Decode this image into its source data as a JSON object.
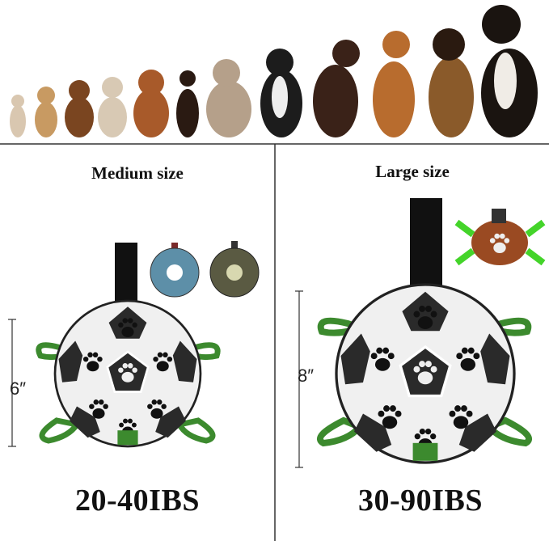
{
  "medium": {
    "title": "Medium size",
    "dimension": "6″",
    "weight": "20-40IBS"
  },
  "large": {
    "title": "Large size",
    "dimension": "8″",
    "weight": "30-90IBS"
  },
  "colors": {
    "strap": "#111111",
    "tab_green": "#3c8a2e",
    "ball_black": "#2a2a2a",
    "ball_white": "#f2f2f2",
    "divider": "#333333"
  },
  "icons": [
    "dog-lineup-image",
    "soccer-ball-toy-icon",
    "paw-print-icon",
    "football-toy-icon"
  ]
}
